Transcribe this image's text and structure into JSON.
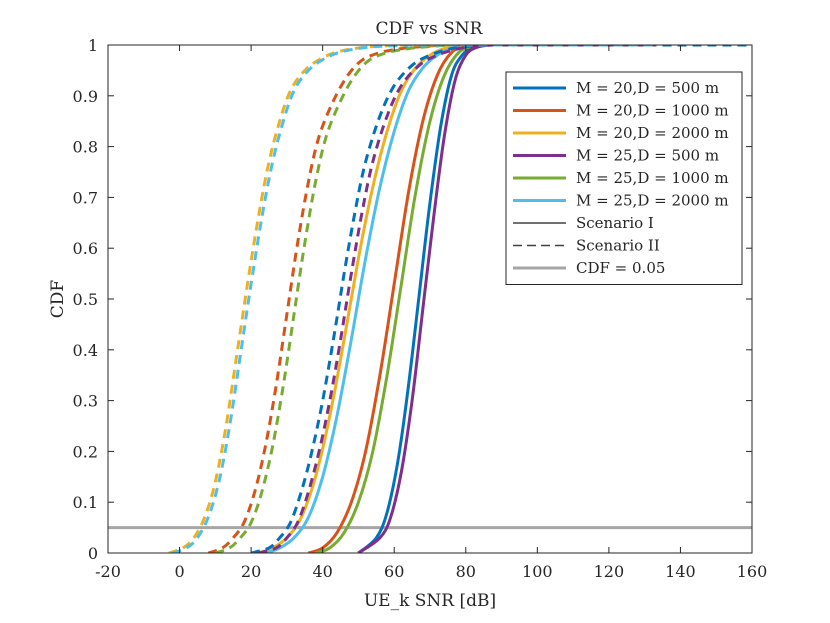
{
  "chart_data": {
    "type": "line",
    "title": "CDF vs SNR",
    "xlabel": "UE_k SNR [dB]",
    "ylabel": "CDF",
    "xlim": [
      -20,
      160
    ],
    "ylim": [
      0,
      1
    ],
    "xticks": [
      -20,
      0,
      20,
      40,
      60,
      80,
      100,
      120,
      140,
      160
    ],
    "xtick_labels": [
      "-20",
      "0",
      "20",
      "40",
      "60",
      "80",
      "100",
      "120",
      "140",
      "160"
    ],
    "yticks": [
      0,
      0.1,
      0.2,
      0.3,
      0.4,
      0.5,
      0.6,
      0.7,
      0.8,
      0.9,
      1
    ],
    "ytick_labels": [
      "0",
      "0.1",
      "0.2",
      "0.3",
      "0.4",
      "0.5",
      "0.6",
      "0.7",
      "0.8",
      "0.9",
      "1"
    ],
    "grid": false,
    "legend_position": "top-right",
    "threshold_line": {
      "name": "CDF = 0.05",
      "y": 0.05,
      "color": "#a6a6a6"
    },
    "legend": [
      {
        "label": "M = 20,D = 500 m",
        "color": "#0072bd",
        "style": "solid",
        "kind": "config"
      },
      {
        "label": "M = 20,D = 1000 m",
        "color": "#d95319",
        "style": "solid",
        "kind": "config"
      },
      {
        "label": "M = 20,D = 2000 m",
        "color": "#edb120",
        "style": "solid",
        "kind": "config"
      },
      {
        "label": "M = 25,D = 500 m",
        "color": "#7e2f8e",
        "style": "solid",
        "kind": "config"
      },
      {
        "label": "M = 25,D = 1000 m",
        "color": "#77ac30",
        "style": "solid",
        "kind": "config"
      },
      {
        "label": "M = 25,D = 2000 m",
        "color": "#4dbeee",
        "style": "solid",
        "kind": "config"
      },
      {
        "label": "Scenario I",
        "color": "#404040",
        "style": "solid",
        "kind": "scenario"
      },
      {
        "label": "Scenario II",
        "color": "#404040",
        "style": "dashed",
        "kind": "scenario"
      },
      {
        "label": "CDF = 0.05",
        "color": "#a6a6a6",
        "style": "solid",
        "kind": "threshold"
      }
    ],
    "series": [
      {
        "name": "M = 20,D = 500 m (Scenario I)",
        "scenario": "I",
        "color": "#0072bd",
        "style": "solid",
        "x": [
          50,
          55,
          58,
          61,
          64,
          67,
          70,
          73,
          76,
          79,
          82,
          86,
          90,
          133
        ],
        "y": [
          0,
          0.03,
          0.08,
          0.18,
          0.33,
          0.51,
          0.69,
          0.84,
          0.94,
          0.98,
          0.995,
          1,
          1,
          1
        ]
      },
      {
        "name": "M = 20,D = 1000 m (Scenario I)",
        "scenario": "I",
        "color": "#d95319",
        "style": "solid",
        "x": [
          36,
          40,
          44,
          48,
          52,
          56,
          60,
          64,
          68,
          72,
          76,
          80,
          85,
          133
        ],
        "y": [
          0,
          0.01,
          0.04,
          0.1,
          0.2,
          0.35,
          0.53,
          0.71,
          0.85,
          0.94,
          0.985,
          0.998,
          1,
          1
        ]
      },
      {
        "name": "M = 20,D = 2000 m (Scenario I)",
        "scenario": "I",
        "color": "#edb120",
        "style": "solid",
        "x": [
          22,
          26,
          30,
          34,
          38,
          42,
          46,
          50,
          54,
          58,
          62,
          66,
          70,
          74,
          78,
          83,
          133
        ],
        "y": [
          0,
          0.01,
          0.03,
          0.07,
          0.15,
          0.27,
          0.42,
          0.58,
          0.72,
          0.83,
          0.91,
          0.955,
          0.98,
          0.993,
          0.998,
          1,
          1
        ]
      },
      {
        "name": "M = 25,D = 500 m (Scenario I)",
        "scenario": "I",
        "color": "#7e2f8e",
        "style": "solid",
        "x": [
          50,
          56,
          59,
          62,
          65,
          68,
          71,
          74,
          77,
          80,
          83,
          87,
          91,
          133
        ],
        "y": [
          0,
          0.03,
          0.07,
          0.16,
          0.3,
          0.48,
          0.66,
          0.82,
          0.93,
          0.98,
          0.995,
          1,
          1,
          1
        ]
      },
      {
        "name": "M = 25,D = 1000 m (Scenario I)",
        "scenario": "I",
        "color": "#77ac30",
        "style": "solid",
        "x": [
          38,
          42,
          46,
          50,
          54,
          58,
          62,
          66,
          70,
          74,
          78,
          82,
          86,
          133
        ],
        "y": [
          0,
          0.01,
          0.04,
          0.1,
          0.2,
          0.35,
          0.53,
          0.71,
          0.85,
          0.94,
          0.985,
          0.998,
          1,
          1
        ]
      },
      {
        "name": "M = 25,D = 2000 m (Scenario I)",
        "scenario": "I",
        "color": "#4dbeee",
        "style": "solid",
        "x": [
          24,
          28,
          32,
          36,
          40,
          44,
          48,
          52,
          56,
          60,
          64,
          68,
          72,
          76,
          80,
          85,
          133
        ],
        "y": [
          0,
          0.01,
          0.03,
          0.07,
          0.15,
          0.27,
          0.42,
          0.58,
          0.72,
          0.83,
          0.91,
          0.955,
          0.98,
          0.993,
          0.998,
          1,
          1
        ]
      },
      {
        "name": "M = 20,D = 500 m (Scenario II)",
        "scenario": "II",
        "color": "#0072bd",
        "style": "dashed",
        "x": [
          20,
          25,
          28,
          31,
          34,
          37,
          40,
          43,
          46,
          49,
          52,
          56,
          60,
          65,
          70,
          76,
          82,
          88,
          160
        ],
        "y": [
          0,
          0.01,
          0.03,
          0.06,
          0.12,
          0.2,
          0.3,
          0.42,
          0.55,
          0.67,
          0.77,
          0.86,
          0.92,
          0.96,
          0.98,
          0.993,
          0.998,
          1,
          1
        ]
      },
      {
        "name": "M = 20,D = 1000 m (Scenario II)",
        "scenario": "II",
        "color": "#d95319",
        "style": "dashed",
        "x": [
          8,
          12,
          15,
          18,
          21,
          24,
          27,
          30,
          33,
          36,
          39,
          43,
          47,
          51,
          56,
          62,
          68,
          74,
          80,
          133
        ],
        "y": [
          0,
          0.01,
          0.03,
          0.06,
          0.12,
          0.21,
          0.33,
          0.47,
          0.61,
          0.73,
          0.82,
          0.89,
          0.94,
          0.97,
          0.985,
          0.993,
          0.997,
          1,
          1,
          1
        ]
      },
      {
        "name": "M = 20,D = 2000 m (Scenario II)",
        "scenario": "II",
        "color": "#edb120",
        "style": "dashed",
        "x": [
          -3,
          1,
          4,
          7,
          10,
          13,
          16,
          19,
          22,
          25,
          28,
          31,
          35,
          40,
          45,
          51,
          57,
          64,
          72,
          80,
          133
        ],
        "y": [
          0,
          0.01,
          0.03,
          0.07,
          0.14,
          0.25,
          0.39,
          0.53,
          0.66,
          0.77,
          0.85,
          0.91,
          0.95,
          0.975,
          0.988,
          0.995,
          0.998,
          1,
          1,
          1,
          1
        ]
      },
      {
        "name": "M = 25,D = 500 m (Scenario II)",
        "scenario": "II",
        "color": "#7e2f8e",
        "style": "dashed",
        "x": [
          22,
          27,
          30,
          33,
          36,
          39,
          42,
          45,
          48,
          51,
          54,
          58,
          62,
          67,
          72,
          78,
          84,
          90,
          133
        ],
        "y": [
          0,
          0.01,
          0.03,
          0.06,
          0.12,
          0.2,
          0.3,
          0.42,
          0.55,
          0.67,
          0.77,
          0.86,
          0.92,
          0.96,
          0.98,
          0.993,
          0.998,
          1,
          1
        ]
      },
      {
        "name": "M = 25,D = 1000 m (Scenario II)",
        "scenario": "II",
        "color": "#77ac30",
        "style": "dashed",
        "x": [
          10,
          14,
          17,
          20,
          23,
          26,
          29,
          32,
          35,
          38,
          41,
          45,
          49,
          53,
          58,
          64,
          70,
          76,
          82,
          133
        ],
        "y": [
          0,
          0.01,
          0.03,
          0.06,
          0.12,
          0.21,
          0.33,
          0.47,
          0.61,
          0.73,
          0.82,
          0.89,
          0.94,
          0.97,
          0.985,
          0.993,
          0.997,
          1,
          1,
          1
        ]
      },
      {
        "name": "M = 25,D = 2000 m (Scenario II)",
        "scenario": "II",
        "color": "#4dbeee",
        "style": "dashed",
        "x": [
          -2,
          2,
          5,
          8,
          11,
          14,
          17,
          20,
          23,
          26,
          29,
          32,
          36,
          41,
          46,
          52,
          58,
          65,
          73,
          81,
          133
        ],
        "y": [
          0,
          0.01,
          0.03,
          0.07,
          0.14,
          0.25,
          0.39,
          0.53,
          0.66,
          0.77,
          0.85,
          0.91,
          0.95,
          0.975,
          0.988,
          0.995,
          0.998,
          1,
          1,
          1,
          1
        ]
      }
    ]
  }
}
